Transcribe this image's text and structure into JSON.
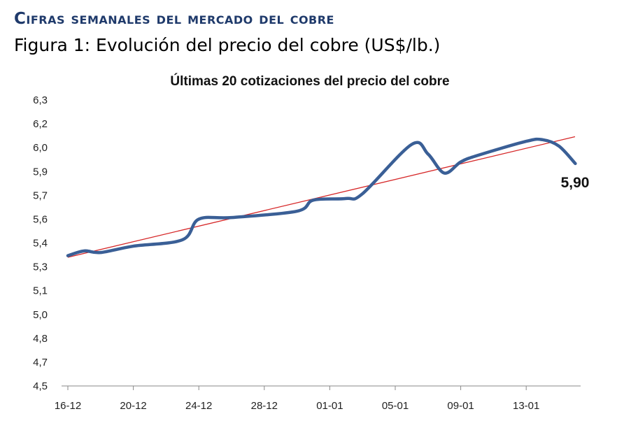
{
  "header": {
    "section_title": "Cifras semanales del mercado del cobre",
    "figure_caption": "Figura 1: Evolución del precio del cobre (US$/lb.)"
  },
  "chart_data": {
    "type": "line",
    "title": "Últimas 20 cotizaciones del precio del cobre",
    "xlabel": "",
    "ylabel": "",
    "ylim": [
      4.5,
      6.3
    ],
    "ytick_labels": [
      "4,5",
      "4,7",
      "4,8",
      "5,0",
      "5,1",
      "5,3",
      "5,4",
      "5,6",
      "5,7",
      "5,9",
      "6,0",
      "6,2",
      "6,3"
    ],
    "xtick_labels": [
      "16-12",
      "20-12",
      "24-12",
      "28-12",
      "01-01",
      "05-01",
      "09-01",
      "13-01"
    ],
    "grid": false,
    "series": [
      {
        "color": "#3a5f96",
        "points": [
          {
            "x": "16-12",
            "y": 5.32
          },
          {
            "x": "17-12",
            "y": 5.35
          },
          {
            "x": "18-12",
            "y": 5.34
          },
          {
            "x": "20-12",
            "y": 5.38
          },
          {
            "x": "23-12",
            "y": 5.42
          },
          {
            "x": "24-12",
            "y": 5.55
          },
          {
            "x": "26-12",
            "y": 5.56
          },
          {
            "x": "30-12",
            "y": 5.6
          },
          {
            "x": "31-12",
            "y": 5.67
          },
          {
            "x": "02-01",
            "y": 5.68
          },
          {
            "x": "03-01",
            "y": 5.71
          },
          {
            "x": "06-01",
            "y": 6.02
          },
          {
            "x": "07-01",
            "y": 5.96
          },
          {
            "x": "08-01",
            "y": 5.84
          },
          {
            "x": "09-01",
            "y": 5.91
          },
          {
            "x": "10-01",
            "y": 5.95
          },
          {
            "x": "13-01",
            "y": 6.04
          },
          {
            "x": "14-01",
            "y": 6.05
          },
          {
            "x": "15-01",
            "y": 6.01
          },
          {
            "x": "16-01",
            "y": 5.9
          }
        ]
      }
    ],
    "trendline": {
      "type": "linear",
      "color": "#d62728"
    },
    "data_label": "5,90"
  }
}
